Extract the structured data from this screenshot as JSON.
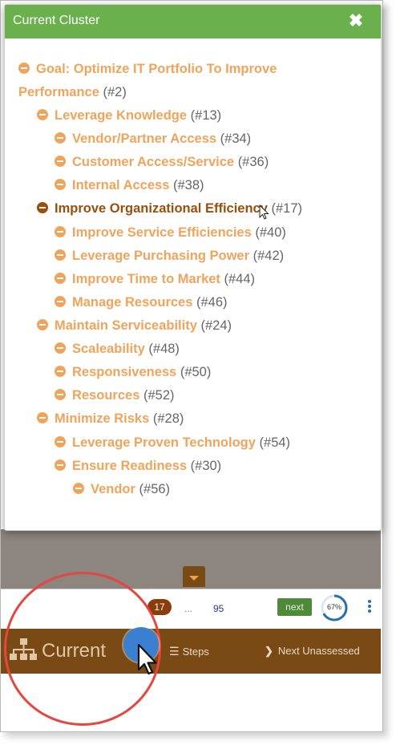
{
  "modal": {
    "title": "Current Cluster",
    "close_icon": "close-icon",
    "tree": [
      {
        "label": "Goal: Optimize IT Portfolio To Improve",
        "id": ""
      },
      {
        "label": "Performance",
        "id": "(#2)"
      },
      {
        "label": "Leverage Knowledge",
        "id": "(#13)"
      },
      {
        "label": "Vendor/Partner Access",
        "id": "(#34)"
      },
      {
        "label": "Customer Access/Service",
        "id": "(#36)"
      },
      {
        "label": "Internal Access",
        "id": "(#38)"
      },
      {
        "label": "Improve Organizational Efficiency",
        "id": "(#17)"
      },
      {
        "label": "Improve Service Efficiencies",
        "id": "(#40)"
      },
      {
        "label": "Leverage Purchasing Power",
        "id": "(#42)"
      },
      {
        "label": "Improve Time to Market",
        "id": "(#44)"
      },
      {
        "label": "Manage Resources",
        "id": "(#46)"
      },
      {
        "label": "Maintain Serviceability",
        "id": "(#24)"
      },
      {
        "label": "Scaleability",
        "id": "(#48)"
      },
      {
        "label": "Responsiveness",
        "id": "(#50)"
      },
      {
        "label": "Resources",
        "id": "(#52)"
      },
      {
        "label": "Minimize Risks",
        "id": "(#28)"
      },
      {
        "label": "Leverage Proven Technology",
        "id": "(#54)"
      },
      {
        "label": "Ensure Readiness",
        "id": "(#30)"
      },
      {
        "label": "Vendor",
        "id": "(#56)"
      }
    ]
  },
  "pager": {
    "current": "17",
    "ellipsis": "...",
    "last": "95",
    "next_label": "next",
    "progress_text": "67%",
    "progress_value": 0.67
  },
  "bottom_nav": {
    "current_label": "Current",
    "steps_label": "Steps",
    "next_unassessed_label": "Next Unassessed"
  },
  "colors": {
    "header_green": "#6ab04c",
    "node_orange": "#f0a45b",
    "active_brown": "#9a4f0d",
    "nav_brown": "#7a4a14",
    "next_green": "#4f8a3a",
    "magnifier_red": "#e5463f"
  }
}
